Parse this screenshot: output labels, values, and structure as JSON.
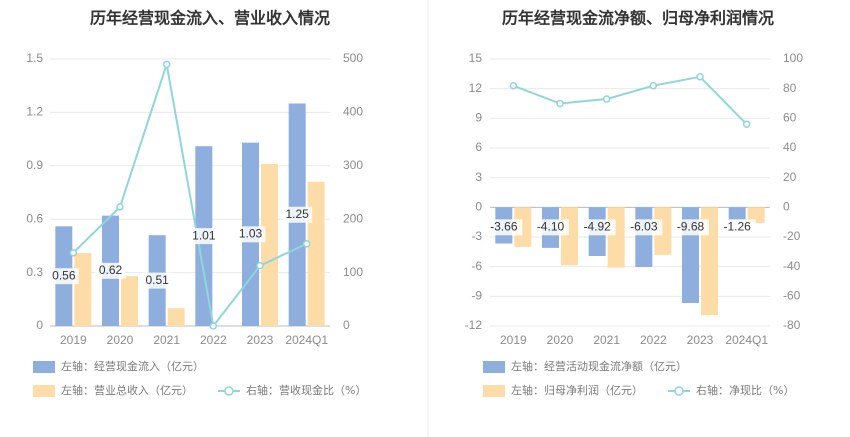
{
  "chart_data": [
    {
      "type": "bar",
      "title": "历年经营现金流入、营业收入情况",
      "categories": [
        "2019",
        "2020",
        "2021",
        "2022",
        "2023",
        "2024Q1"
      ],
      "left_axis": {
        "ticks": [
          "0",
          "0.3",
          "0.6",
          "0.9",
          "1.2",
          "1.5"
        ],
        "ylim": [
          0,
          1.5
        ]
      },
      "right_axis": {
        "ticks": [
          "0",
          "100",
          "200",
          "300",
          "400",
          "500"
        ],
        "ylim": [
          0,
          500
        ]
      },
      "series": [
        {
          "name": "左轴：经营现金流入（亿元）",
          "kind": "bar",
          "axis": "left",
          "color": "#8eaedd",
          "values": [
            0.56,
            0.62,
            0.51,
            1.01,
            1.03,
            1.25
          ],
          "labels": [
            "0.56",
            "0.62",
            "0.51",
            "1.01",
            "1.03",
            "1.25"
          ]
        },
        {
          "name": "左轴：营业总收入（亿元）",
          "kind": "bar",
          "axis": "left",
          "color": "#fddca8",
          "values": [
            0.41,
            0.28,
            0.1,
            0.0,
            0.91,
            0.81
          ]
        },
        {
          "name": "右轴：营收现金比（%）",
          "kind": "line",
          "axis": "right",
          "color": "#8fd6dc",
          "values": [
            137,
            223,
            490,
            0,
            113,
            154
          ]
        }
      ],
      "grid": true,
      "legend_position": "bottom-left"
    },
    {
      "type": "bar",
      "title": "历年经营现金流净额、归母净利润情况",
      "categories": [
        "2019",
        "2020",
        "2021",
        "2022",
        "2023",
        "2024Q1"
      ],
      "left_axis": {
        "ticks": [
          "-12",
          "-9",
          "-6",
          "-3",
          "0",
          "3",
          "6",
          "9",
          "12",
          "15"
        ],
        "ylim": [
          -12,
          15
        ]
      },
      "right_axis": {
        "ticks": [
          "-80",
          "-60",
          "-40",
          "-20",
          "0",
          "20",
          "40",
          "60",
          "80",
          "100"
        ],
        "ylim": [
          -80,
          100
        ]
      },
      "series": [
        {
          "name": "左轴：经营活动现金流净额（亿元）",
          "kind": "bar",
          "axis": "left",
          "color": "#8eaedd",
          "values": [
            -3.66,
            -4.1,
            -4.92,
            -6.03,
            -9.68,
            -1.26
          ],
          "labels": [
            "-3.66",
            "-4.10",
            "-4.92",
            "-6.03",
            "-9.68",
            "-1.26"
          ]
        },
        {
          "name": "左轴：归母净利润（亿元）",
          "kind": "bar",
          "axis": "left",
          "color": "#fddca8",
          "values": [
            -4.0,
            -5.85,
            -6.1,
            -4.8,
            -10.9,
            -1.6
          ]
        },
        {
          "name": "右轴：净现比（%）",
          "kind": "line",
          "axis": "right",
          "color": "#8fd6dc",
          "values": [
            82,
            70,
            73,
            82,
            88,
            56
          ]
        }
      ],
      "grid": true,
      "legend_position": "bottom-left"
    }
  ]
}
